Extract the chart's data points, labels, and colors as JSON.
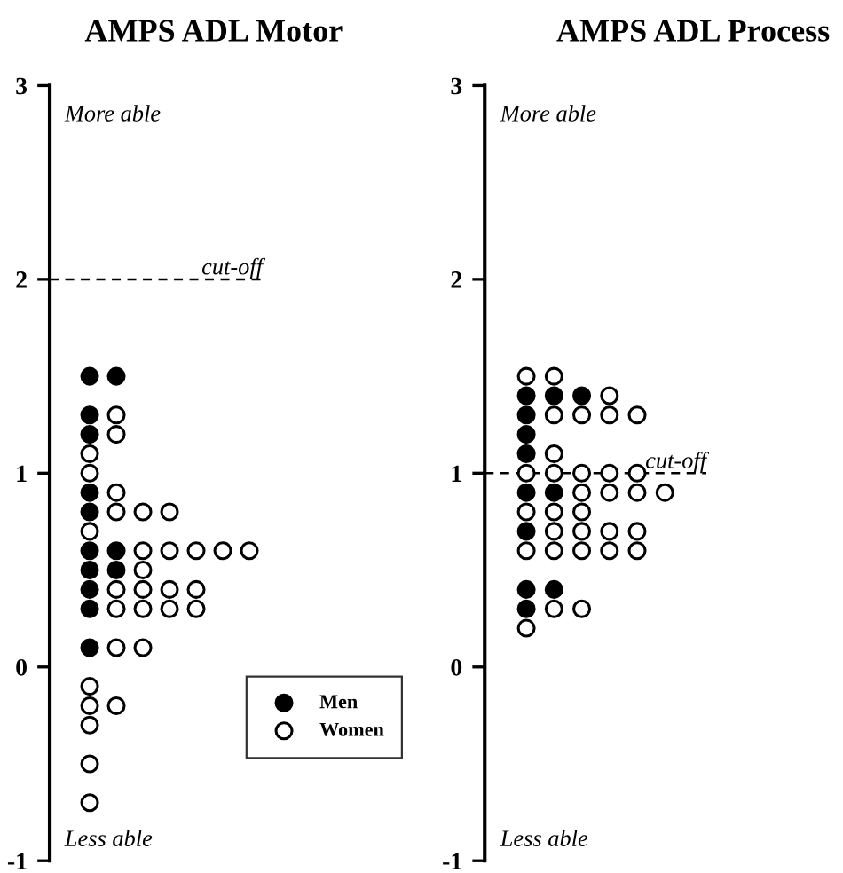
{
  "chart_data": [
    {
      "type": "scatter",
      "title": "AMPS ADL Motor",
      "categories": [
        null,
        null,
        null,
        null,
        null,
        null,
        null,
        null
      ],
      "ylim": [
        -1,
        3
      ],
      "yticks": [
        -1,
        0,
        1,
        2,
        3
      ],
      "tick_labels": "y",
      "legend": "bottom right",
      "marker": "circle",
      "annotations": [
        "More able",
        "Less able"
      ],
      "ref_lines": [
        {
          "axis": "y",
          "value": 2,
          "label": "cut-off",
          "color": "#000000",
          "line_style": "dashed"
        }
      ],
      "series": [
        {
          "name": "Men",
          "color": "#000000",
          "values": [
            null,
            1.5,
            1.5,
            null,
            null,
            null,
            null,
            null
          ]
        },
        {
          "color": "#000000",
          "values": [
            null,
            1.3,
            null,
            null,
            null,
            null,
            null,
            null
          ]
        },
        {
          "name": "Women",
          "color": "#ffffff",
          "values": [
            null,
            null,
            1.3,
            null,
            null,
            null,
            null,
            null
          ]
        },
        {
          "color": "#000000",
          "values": [
            null,
            1.2,
            null,
            null,
            null,
            null,
            null,
            null
          ]
        },
        {
          "color": "#ffffff",
          "values": [
            null,
            null,
            1.2,
            null,
            null,
            null,
            null,
            null
          ]
        },
        {
          "color": "#ffffff",
          "values": [
            null,
            1.1,
            null,
            null,
            null,
            null,
            null,
            null
          ]
        },
        {
          "color": "#ffffff",
          "values": [
            null,
            1.0,
            null,
            null,
            null,
            null,
            null,
            null
          ]
        },
        {
          "color": "#000000",
          "values": [
            null,
            0.9,
            null,
            null,
            null,
            null,
            null,
            null
          ]
        },
        {
          "color": "#ffffff",
          "values": [
            null,
            null,
            0.9,
            null,
            null,
            null,
            null,
            null
          ]
        },
        {
          "color": "#000000",
          "values": [
            null,
            0.8,
            null,
            null,
            null,
            null,
            null,
            null
          ]
        },
        {
          "color": "#ffffff",
          "values": [
            null,
            null,
            0.8,
            0.8,
            0.8,
            null,
            null,
            null
          ]
        },
        {
          "color": "#ffffff",
          "values": [
            null,
            0.7,
            null,
            null,
            null,
            null,
            null,
            null
          ]
        },
        {
          "color": "#000000",
          "values": [
            null,
            0.6,
            0.6,
            null,
            null,
            null,
            null,
            null
          ]
        },
        {
          "color": "#ffffff",
          "values": [
            null,
            null,
            null,
            0.6,
            0.6,
            0.6,
            0.6,
            0.6
          ]
        },
        {
          "color": "#000000",
          "values": [
            null,
            0.5,
            0.5,
            null,
            null,
            null,
            null,
            null
          ]
        },
        {
          "color": "#ffffff",
          "values": [
            null,
            null,
            null,
            0.5,
            null,
            null,
            null,
            null
          ]
        },
        {
          "color": "#000000",
          "values": [
            null,
            0.4,
            null,
            null,
            null,
            null,
            null,
            null
          ]
        },
        {
          "color": "#ffffff",
          "values": [
            null,
            null,
            0.4,
            0.4,
            0.4,
            0.4,
            null,
            null
          ]
        },
        {
          "color": "#000000",
          "values": [
            null,
            0.3,
            null,
            null,
            null,
            null,
            null,
            null
          ]
        },
        {
          "color": "#ffffff",
          "values": [
            null,
            null,
            0.3,
            0.3,
            0.3,
            0.3,
            null,
            null
          ]
        },
        {
          "color": "#000000",
          "values": [
            null,
            0.1,
            null,
            null,
            null,
            null,
            null,
            null
          ]
        },
        {
          "color": "#ffffff",
          "values": [
            null,
            null,
            0.1,
            0.1,
            null,
            null,
            null,
            null
          ]
        },
        {
          "color": "#ffffff",
          "values": [
            null,
            -0.1,
            null,
            null,
            null,
            null,
            null,
            null
          ]
        },
        {
          "color": "#ffffff",
          "values": [
            null,
            -0.2,
            -0.2,
            null,
            null,
            null,
            null,
            null
          ]
        },
        {
          "color": "#ffffff",
          "values": [
            null,
            -0.3,
            null,
            null,
            null,
            null,
            null,
            null
          ]
        },
        {
          "color": "#ffffff",
          "values": [
            null,
            -0.5,
            null,
            null,
            null,
            null,
            null,
            null
          ]
        },
        {
          "color": "#ffffff",
          "values": [
            null,
            -0.7,
            null,
            null,
            null,
            null,
            null,
            null
          ]
        }
      ]
    },
    {
      "type": "scatter",
      "title": "AMPS ADL Process",
      "categories": [
        null,
        null,
        null,
        null,
        null,
        null,
        null,
        null
      ],
      "ylim": [
        -1,
        3
      ],
      "yticks": [
        -1,
        0,
        1,
        2,
        3
      ],
      "tick_labels": "y",
      "marker": "circle",
      "annotations": [
        "More able",
        "Less able"
      ],
      "ref_lines": [
        {
          "axis": "y",
          "value": 1,
          "label": "cut-off",
          "color": "#000000",
          "line_style": "dashed"
        }
      ],
      "series": [
        {
          "color": "#ffffff",
          "values": [
            null,
            1.5,
            1.5,
            null,
            null,
            null,
            null,
            null
          ]
        },
        {
          "color": "#000000",
          "values": [
            null,
            1.4,
            1.4,
            1.4,
            null,
            null,
            null,
            null
          ]
        },
        {
          "color": "#ffffff",
          "values": [
            null,
            null,
            null,
            null,
            1.4,
            null,
            null,
            null
          ]
        },
        {
          "color": "#000000",
          "values": [
            null,
            1.3,
            null,
            null,
            null,
            null,
            null,
            null
          ]
        },
        {
          "color": "#ffffff",
          "values": [
            null,
            null,
            1.3,
            1.3,
            1.3,
            1.3,
            null,
            null
          ]
        },
        {
          "color": "#000000",
          "values": [
            null,
            1.2,
            null,
            null,
            null,
            null,
            null,
            null
          ]
        },
        {
          "color": "#000000",
          "values": [
            null,
            1.1,
            null,
            null,
            null,
            null,
            null,
            null
          ]
        },
        {
          "color": "#ffffff",
          "values": [
            null,
            null,
            1.1,
            null,
            null,
            null,
            null,
            null
          ]
        },
        {
          "color": "#ffffff",
          "values": [
            null,
            1.0,
            1.0,
            1.0,
            1.0,
            1.0,
            null,
            null
          ]
        },
        {
          "color": "#000000",
          "values": [
            null,
            0.9,
            0.9,
            null,
            null,
            null,
            null,
            null
          ]
        },
        {
          "color": "#ffffff",
          "values": [
            null,
            null,
            null,
            0.9,
            0.9,
            0.9,
            0.9,
            null
          ]
        },
        {
          "color": "#ffffff",
          "values": [
            null,
            0.8,
            0.8,
            0.8,
            null,
            null,
            null,
            null
          ]
        },
        {
          "color": "#000000",
          "values": [
            null,
            0.7,
            null,
            null,
            null,
            null,
            null,
            null
          ]
        },
        {
          "color": "#ffffff",
          "values": [
            null,
            null,
            0.7,
            0.7,
            0.7,
            0.7,
            null,
            null
          ]
        },
        {
          "color": "#ffffff",
          "values": [
            null,
            0.6,
            0.6,
            0.6,
            0.6,
            0.6,
            null,
            null
          ]
        },
        {
          "color": "#000000",
          "values": [
            null,
            0.4,
            0.4,
            null,
            null,
            null,
            null,
            null
          ]
        },
        {
          "color": "#000000",
          "values": [
            null,
            0.3,
            null,
            null,
            null,
            null,
            null,
            null
          ]
        },
        {
          "color": "#ffffff",
          "values": [
            null,
            null,
            0.3,
            0.3,
            null,
            null,
            null,
            null
          ]
        },
        {
          "color": "#ffffff",
          "values": [
            null,
            0.2,
            null,
            null,
            null,
            null,
            null,
            null
          ]
        }
      ]
    }
  ]
}
